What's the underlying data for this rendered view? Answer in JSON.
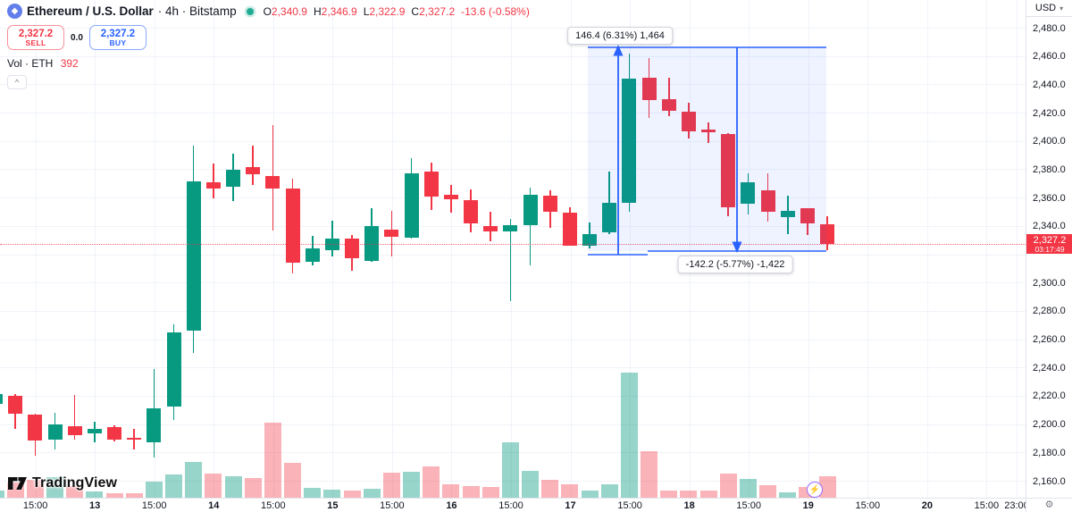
{
  "header": {
    "title": "Ethereum / U.S. Dollar",
    "meta": "· 4h · Bitstamp",
    "ohlc": {
      "o_label": "O",
      "o_value": "2,340.9",
      "h_label": "H",
      "h_value": "2,346.9",
      "l_label": "L",
      "l_value": "2,322.9",
      "c_label": "C",
      "c_value": "2,327.2",
      "change": "-13.6 (-0.58%)"
    },
    "sell_button": {
      "price": "2,327.2",
      "label": "SELL"
    },
    "spread": "0.0",
    "buy_button": {
      "price": "2,327.2",
      "label": "BUY"
    },
    "volume_row": {
      "label": "Vol · ETH",
      "value": "392"
    },
    "collapse_glyph": "^"
  },
  "icons": {
    "eth_diamond": "◆",
    "chevron_down": "▾",
    "gear": "⚙",
    "lightning": "⚡"
  },
  "watermark": {
    "text": "TradingView"
  },
  "measure": {
    "up_label": "146.4 (6.31%) 1,464",
    "down_label": "-142.2 (-5.77%) -1,422"
  },
  "price_tag": {
    "price": "2,327.2",
    "countdown": "03:17:49"
  },
  "currency": "USD",
  "chart_data": {
    "type": "candlestick",
    "title": "Ethereum / U.S. Dollar · 4h · Bitstamp",
    "ylabel": "Price (USD)",
    "price_axis": {
      "top_tick": 2480,
      "bottom_tick": 2160,
      "tick_step": 20,
      "ticks": [
        "2,480.0",
        "2,460.0",
        "2,440.0",
        "2,420.0",
        "2,400.0",
        "2,380.0",
        "2,360.0",
        "2,340.0",
        "",
        "2,300.0",
        "2,280.0",
        "2,260.0",
        "2,240.0",
        "2,220.0",
        "2,200.0",
        "2,180.0",
        "2,160.0"
      ]
    },
    "time_labels": [
      "15:00",
      "13",
      "15:00",
      "14",
      "15:00",
      "15",
      "15:00",
      "16",
      "15:00",
      "17",
      "15:00",
      "18",
      "15:00",
      "19",
      "15:00",
      "20",
      "15:00",
      "23:00"
    ],
    "current_price": 2327.2,
    "grid": true,
    "legend_position": "top-left",
    "candles": [
      {
        "o": 2214.0,
        "h": 2221.0,
        "l": 2212.0,
        "c": 2221.0,
        "v": 130
      },
      {
        "o": 2220.0,
        "h": 2221.3,
        "l": 2196.7,
        "c": 2207.4,
        "v": 270
      },
      {
        "o": 2207.0,
        "h": 2207.4,
        "l": 2177.7,
        "c": 2188.5,
        "v": 320
      },
      {
        "o": 2189.1,
        "h": 2208.0,
        "l": 2182.1,
        "c": 2199.8,
        "v": 370
      },
      {
        "o": 2198.6,
        "h": 2220.7,
        "l": 2189.1,
        "c": 2192.3,
        "v": 210
      },
      {
        "o": 2193.5,
        "h": 2201.7,
        "l": 2187.2,
        "c": 2196.7,
        "v": 110
      },
      {
        "o": 2197.9,
        "h": 2199.2,
        "l": 2187.8,
        "c": 2189.1,
        "v": 80
      },
      {
        "o": 2190.4,
        "h": 2196.7,
        "l": 2182.1,
        "c": 2189.1,
        "v": 80
      },
      {
        "o": 2187.2,
        "h": 2239.0,
        "l": 2176.5,
        "c": 2211.2,
        "v": 290
      },
      {
        "o": 2212.4,
        "h": 2270.5,
        "l": 2203.0,
        "c": 2264.8,
        "v": 420
      },
      {
        "o": 2266.1,
        "h": 2396.7,
        "l": 2250.3,
        "c": 2371.5,
        "v": 640
      },
      {
        "o": 2370.8,
        "h": 2384.1,
        "l": 2359.5,
        "c": 2366.4,
        "v": 430
      },
      {
        "o": 2367.7,
        "h": 2391.0,
        "l": 2357.6,
        "c": 2379.7,
        "v": 380
      },
      {
        "o": 2381.6,
        "h": 2396.7,
        "l": 2368.9,
        "c": 2376.5,
        "v": 350
      },
      {
        "o": 2375.3,
        "h": 2411.2,
        "l": 2336.8,
        "c": 2366.4,
        "v": 1340
      },
      {
        "o": 2366.4,
        "h": 2373.4,
        "l": 2306.5,
        "c": 2314.1,
        "v": 620
      },
      {
        "o": 2314.7,
        "h": 2333.0,
        "l": 2312.2,
        "c": 2324.2,
        "v": 180
      },
      {
        "o": 2322.9,
        "h": 2343.7,
        "l": 2318.5,
        "c": 2331.1,
        "v": 140
      },
      {
        "o": 2331.1,
        "h": 2333.6,
        "l": 2308.4,
        "c": 2317.2,
        "v": 130
      },
      {
        "o": 2315.3,
        "h": 2352.5,
        "l": 2314.7,
        "c": 2339.9,
        "v": 160
      },
      {
        "o": 2337.4,
        "h": 2350.6,
        "l": 2318.5,
        "c": 2332.3,
        "v": 450
      },
      {
        "o": 2331.7,
        "h": 2387.9,
        "l": 2331.1,
        "c": 2377.2,
        "v": 460
      },
      {
        "o": 2378.4,
        "h": 2384.7,
        "l": 2351.3,
        "c": 2360.7,
        "v": 560
      },
      {
        "o": 2362.0,
        "h": 2368.9,
        "l": 2349.4,
        "c": 2358.8,
        "v": 240
      },
      {
        "o": 2358.2,
        "h": 2365.8,
        "l": 2335.5,
        "c": 2341.8,
        "v": 210
      },
      {
        "o": 2339.9,
        "h": 2350.0,
        "l": 2329.2,
        "c": 2336.1,
        "v": 190
      },
      {
        "o": 2336.1,
        "h": 2345.0,
        "l": 2286.9,
        "c": 2340.5,
        "v": 990
      },
      {
        "o": 2340.5,
        "h": 2367.0,
        "l": 2312.2,
        "c": 2362.0,
        "v": 480
      },
      {
        "o": 2361.4,
        "h": 2365.2,
        "l": 2338.6,
        "c": 2350.0,
        "v": 320
      },
      {
        "o": 2349.4,
        "h": 2353.1,
        "l": 2326.0,
        "c": 2326.0,
        "v": 240
      },
      {
        "o": 2326.0,
        "h": 2342.4,
        "l": 2324.1,
        "c": 2334.2,
        "v": 130
      },
      {
        "o": 2335.5,
        "h": 2378.4,
        "l": 2334.2,
        "c": 2356.3,
        "v": 240
      },
      {
        "o": 2356.3,
        "h": 2461.7,
        "l": 2350.0,
        "c": 2444.0,
        "v": 2240
      },
      {
        "o": 2444.7,
        "h": 2458.5,
        "l": 2416.3,
        "c": 2428.9,
        "v": 830
      },
      {
        "o": 2429.5,
        "h": 2444.6,
        "l": 2417.5,
        "c": 2421.3,
        "v": 130
      },
      {
        "o": 2420.7,
        "h": 2427.0,
        "l": 2401.8,
        "c": 2406.8,
        "v": 130
      },
      {
        "o": 2408.1,
        "h": 2413.1,
        "l": 2398.6,
        "c": 2406.2,
        "v": 130
      },
      {
        "o": 2404.9,
        "h": 2405.6,
        "l": 2346.9,
        "c": 2353.2,
        "v": 430
      },
      {
        "o": 2355.7,
        "h": 2377.2,
        "l": 2348.1,
        "c": 2370.8,
        "v": 340
      },
      {
        "o": 2365.2,
        "h": 2377.2,
        "l": 2343.1,
        "c": 2350.0,
        "v": 220
      },
      {
        "o": 2346.2,
        "h": 2361.4,
        "l": 2334.2,
        "c": 2350.6,
        "v": 100
      },
      {
        "o": 2352.5,
        "h": 2352.5,
        "l": 2333.6,
        "c": 2341.8,
        "v": 190
      },
      {
        "o": 2340.9,
        "h": 2346.9,
        "l": 2322.9,
        "c": 2327.2,
        "v": 392
      }
    ],
    "colors": {
      "up": "#089981",
      "down": "#f23645",
      "volume_up": "rgba(8,153,129,0.42)",
      "volume_down": "rgba(242,54,69,0.38)",
      "measure": "#2962ff",
      "measure_fill": "rgba(41,98,255,0.08)",
      "price_tag_bg": "#f23645"
    }
  }
}
